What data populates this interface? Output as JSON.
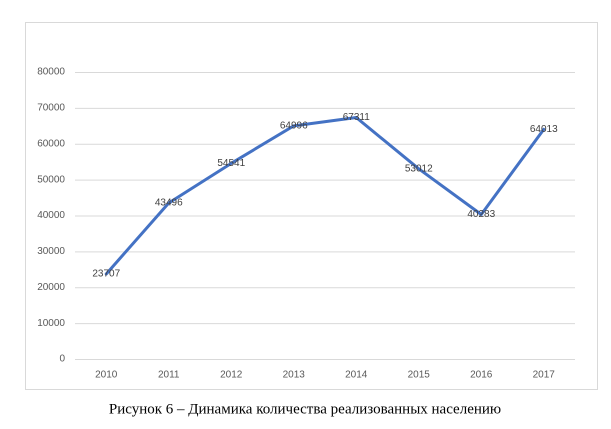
{
  "chart_data": {
    "type": "line",
    "caption": "Рисунок 6 – Динамика количества реализованных населению",
    "categories": [
      "2010",
      "2011",
      "2012",
      "2013",
      "2014",
      "2015",
      "2016",
      "2017"
    ],
    "values": [
      23707,
      43496,
      54541,
      64996,
      67311,
      53012,
      40283,
      64013
    ],
    "color": "#4472c4",
    "ylim": [
      0,
      80000
    ],
    "yticks": [
      0,
      10000,
      20000,
      30000,
      40000,
      50000,
      60000,
      70000,
      80000
    ],
    "grid": true
  }
}
